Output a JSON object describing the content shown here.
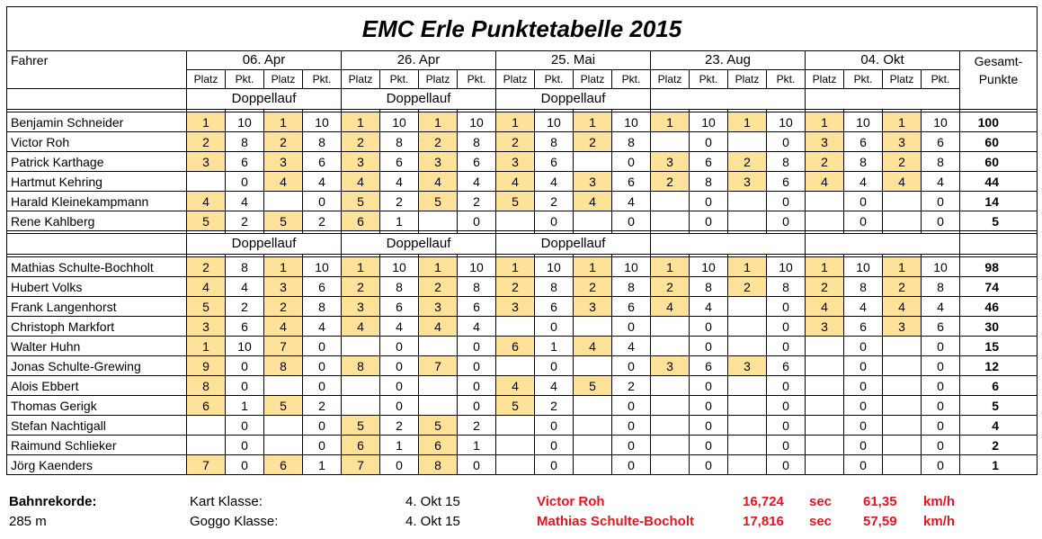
{
  "title": "EMC Erle  Punktetabelle 2015",
  "header": {
    "fahrer": "Fahrer",
    "gesamt_line1": "Gesamt-",
    "gesamt_line2": "Punkte",
    "dates": [
      "06. Apr",
      "26. Apr",
      "25. Mai",
      "23. Aug",
      "04. Okt"
    ],
    "platz": "Platz",
    "pkt": "Pkt.",
    "doppellauf": "Doppellauf"
  },
  "colors": {
    "highlight": "#ffe29a",
    "record_red": "#e8141e"
  },
  "group1": [
    {
      "name": "Benjamin Schneider",
      "cells": [
        "1",
        "10",
        "1",
        "10",
        "1",
        "10",
        "1",
        "10",
        "1",
        "10",
        "1",
        "10",
        "1",
        "10",
        "1",
        "10",
        "1",
        "10",
        "1",
        "10"
      ],
      "total": "100"
    },
    {
      "name": "Victor Roh",
      "cells": [
        "2",
        "8",
        "2",
        "8",
        "2",
        "8",
        "2",
        "8",
        "2",
        "8",
        "2",
        "8",
        "",
        "0",
        "",
        "0",
        "3",
        "6",
        "3",
        "6"
      ],
      "total": "60"
    },
    {
      "name": "Patrick Karthage",
      "cells": [
        "3",
        "6",
        "3",
        "6",
        "3",
        "6",
        "3",
        "6",
        "3",
        "6",
        "",
        "0",
        "3",
        "6",
        "2",
        "8",
        "2",
        "8",
        "2",
        "8"
      ],
      "total": "60"
    },
    {
      "name": "Hartmut Kehring",
      "cells": [
        "",
        "0",
        "4",
        "4",
        "4",
        "4",
        "4",
        "4",
        "4",
        "4",
        "3",
        "6",
        "2",
        "8",
        "3",
        "6",
        "4",
        "4",
        "4",
        "4"
      ],
      "total": "44"
    },
    {
      "name": "Harald Kleinekampmann",
      "cells": [
        "4",
        "4",
        "",
        "0",
        "5",
        "2",
        "5",
        "2",
        "5",
        "2",
        "4",
        "4",
        "",
        "0",
        "",
        "0",
        "",
        "0",
        "",
        "0"
      ],
      "total": "14"
    },
    {
      "name": "Rene Kahlberg",
      "cells": [
        "5",
        "2",
        "5",
        "2",
        "6",
        "1",
        "",
        "0",
        "",
        "0",
        "",
        "0",
        "",
        "0",
        "",
        "0",
        "",
        "0",
        "",
        "0"
      ],
      "total": "5"
    }
  ],
  "group2": [
    {
      "name": "Mathias Schulte-Bochholt",
      "cells": [
        "2",
        "8",
        "1",
        "10",
        "1",
        "10",
        "1",
        "10",
        "1",
        "10",
        "1",
        "10",
        "1",
        "10",
        "1",
        "10",
        "1",
        "10",
        "1",
        "10"
      ],
      "total": "98"
    },
    {
      "name": "Hubert Volks",
      "cells": [
        "4",
        "4",
        "3",
        "6",
        "2",
        "8",
        "2",
        "8",
        "2",
        "8",
        "2",
        "8",
        "2",
        "8",
        "2",
        "8",
        "2",
        "8",
        "2",
        "8"
      ],
      "total": "74"
    },
    {
      "name": "Frank Langenhorst",
      "cells": [
        "5",
        "2",
        "2",
        "8",
        "3",
        "6",
        "3",
        "6",
        "3",
        "6",
        "3",
        "6",
        "4",
        "4",
        "",
        "0",
        "4",
        "4",
        "4",
        "4"
      ],
      "total": "46"
    },
    {
      "name": "Christoph Markfort",
      "cells": [
        "3",
        "6",
        "4",
        "4",
        "4",
        "4",
        "4",
        "4",
        "",
        "0",
        "",
        "0",
        "",
        "0",
        "",
        "0",
        "3",
        "6",
        "3",
        "6"
      ],
      "total": "30"
    },
    {
      "name": "Walter Huhn",
      "cells": [
        "1",
        "10",
        "7",
        "0",
        "",
        "0",
        "",
        "0",
        "6",
        "1",
        "4",
        "4",
        "",
        "0",
        "",
        "0",
        "",
        "0",
        "",
        "0"
      ],
      "total": "15"
    },
    {
      "name": "Jonas Schulte-Grewing",
      "cells": [
        "9",
        "0",
        "8",
        "0",
        "8",
        "0",
        "7",
        "0",
        "",
        "0",
        "",
        "0",
        "3",
        "6",
        "3",
        "6",
        "",
        "0",
        "",
        "0"
      ],
      "total": "12"
    },
    {
      "name": "Alois Ebbert",
      "cells": [
        "8",
        "0",
        "",
        "0",
        "",
        "0",
        "",
        "0",
        "4",
        "4",
        "5",
        "2",
        "",
        "0",
        "",
        "0",
        "",
        "0",
        "",
        "0"
      ],
      "total": "6"
    },
    {
      "name": "Thomas Gerigk",
      "cells": [
        "6",
        "1",
        "5",
        "2",
        "",
        "0",
        "",
        "0",
        "5",
        "2",
        "",
        "0",
        "",
        "0",
        "",
        "0",
        "",
        "0",
        "",
        "0"
      ],
      "total": "5"
    },
    {
      "name": "Stefan Nachtigall",
      "cells": [
        "",
        "0",
        "",
        "0",
        "5",
        "2",
        "5",
        "2",
        "",
        "0",
        "",
        "0",
        "",
        "0",
        "",
        "0",
        "",
        "0",
        "",
        "0"
      ],
      "total": "4"
    },
    {
      "name": "Raimund Schlieker",
      "cells": [
        "",
        "0",
        "",
        "0",
        "6",
        "1",
        "6",
        "1",
        "",
        "0",
        "",
        "0",
        "",
        "0",
        "",
        "0",
        "",
        "0",
        "",
        "0"
      ],
      "total": "2"
    },
    {
      "name": "Jörg Kaenders",
      "cells": [
        "7",
        "0",
        "6",
        "1",
        "7",
        "0",
        "8",
        "0",
        "",
        "0",
        "",
        "0",
        "",
        "0",
        "",
        "0",
        "",
        "0",
        "",
        "0"
      ],
      "total": "1"
    }
  ],
  "records": {
    "heading": "Bahnrekorde:",
    "length": "285 m",
    "rows": [
      {
        "klasse": "Kart Klasse:",
        "date": "4. Okt 15",
        "driver": "Victor Roh",
        "time": "16,724",
        "time_unit": "sec",
        "speed": "61,35",
        "speed_unit": "km/h"
      },
      {
        "klasse": "Goggo Klasse:",
        "date": "4. Okt 15",
        "driver": "Mathias Schulte-Bocholt",
        "time": "17,816",
        "time_unit": "sec",
        "speed": "57,59",
        "speed_unit": "km/h"
      }
    ]
  }
}
